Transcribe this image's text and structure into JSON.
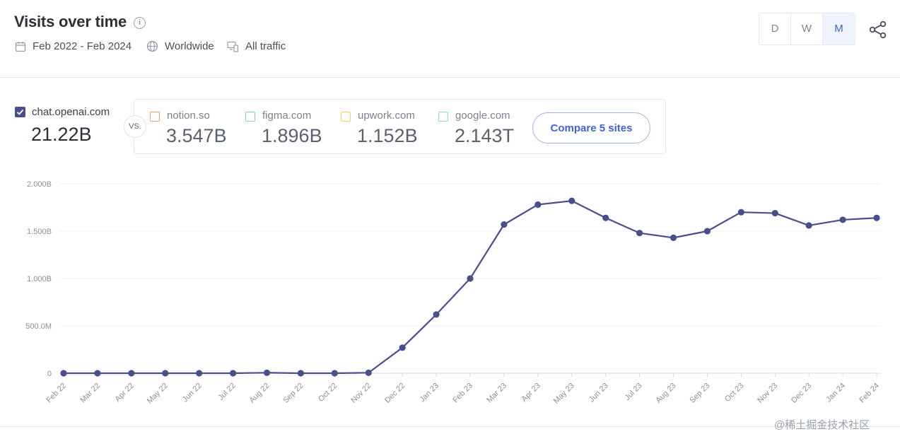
{
  "header": {
    "title": "Visits over time",
    "date_range": "Feb 2022 - Feb 2024",
    "region": "Worldwide",
    "traffic": "All traffic",
    "granularity": [
      "D",
      "W",
      "M"
    ],
    "active_granularity": "M"
  },
  "primary": {
    "domain": "chat.openai.com",
    "total": "21.22B",
    "color": "#4a4f8c"
  },
  "vs_label": "VS.",
  "competitors": [
    {
      "domain": "notion.so",
      "value": "3.547B",
      "color": "#f0a070"
    },
    {
      "domain": "figma.com",
      "value": "1.896B",
      "color": "#7ed0b8"
    },
    {
      "domain": "upwork.com",
      "value": "1.152B",
      "color": "#f0cf74"
    },
    {
      "domain": "google.com",
      "value": "2.143T",
      "color": "#8ed6ea"
    }
  ],
  "compare_button": "Compare 5 sites",
  "chart_data": {
    "type": "line",
    "title": "Visits over time",
    "xlabel": "",
    "ylabel": "",
    "categories": [
      "Feb 22",
      "Mar 22",
      "Apr 22",
      "May 22",
      "Jun 22",
      "Jul 22",
      "Aug 22",
      "Sep 22",
      "Oct 22",
      "Nov 22",
      "Dec 22",
      "Jan 23",
      "Feb 23",
      "Mar 23",
      "Apr 23",
      "May 23",
      "Jun 23",
      "Jul 23",
      "Aug 23",
      "Sep 23",
      "Oct 23",
      "Nov 23",
      "Dec 23",
      "Jan 24",
      "Feb 24"
    ],
    "series": [
      {
        "name": "chat.openai.com",
        "color": "#4a4f8c",
        "values": [
          0,
          0,
          0,
          0,
          0,
          0,
          0.005,
          0,
          0,
          0.005,
          0.27,
          0.62,
          1.0,
          1.57,
          1.78,
          1.82,
          1.64,
          1.48,
          1.43,
          1.5,
          1.7,
          1.69,
          1.56,
          1.62,
          1.64
        ]
      }
    ],
    "y_ticks": [
      "0",
      "500.0M",
      "1.000B",
      "1.500B",
      "2.000B"
    ],
    "y_tick_values": [
      0,
      0.5,
      1.0,
      1.5,
      2.0
    ],
    "ylim": [
      0,
      2.0
    ],
    "grid": true
  },
  "watermark": "@稀土掘金技术社区"
}
